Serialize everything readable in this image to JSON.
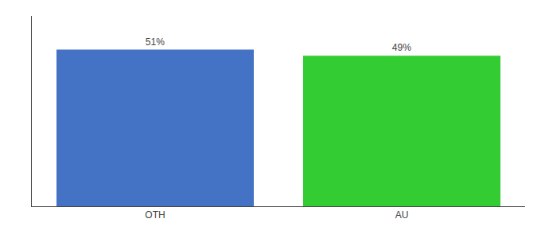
{
  "chart_data": {
    "type": "bar",
    "categories": [
      "OTH",
      "AU"
    ],
    "values": [
      51,
      49
    ],
    "value_labels": [
      "51%",
      "49%"
    ],
    "data_labels": true,
    "colors": [
      "#4472C4",
      "#33CC33"
    ],
    "ylim": [
      0,
      62
    ],
    "yticks": [],
    "tick_labels": "x",
    "grid": false
  }
}
